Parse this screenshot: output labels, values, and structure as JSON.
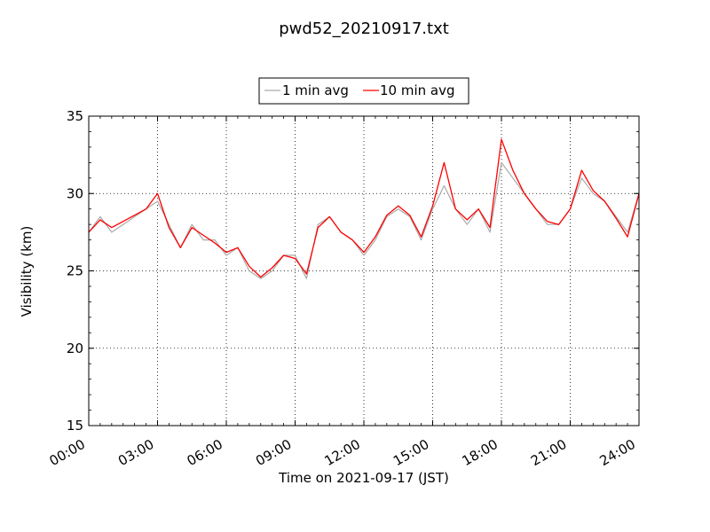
{
  "chart_data": {
    "type": "line",
    "title": "pwd52_20210917.txt",
    "xlabel": "Time on 2021-09-17 (JST)",
    "ylabel": "Visibility (km)",
    "xlim": [
      "00:00",
      "24:00"
    ],
    "ylim": [
      15,
      35
    ],
    "x_ticks": [
      "00:00",
      "03:00",
      "06:00",
      "09:00",
      "12:00",
      "15:00",
      "18:00",
      "21:00",
      "24:00"
    ],
    "y_ticks": [
      "15",
      "20",
      "25",
      "30",
      "35"
    ],
    "grid": true,
    "legend_position": "top-center",
    "series": [
      {
        "name": "1 min avg",
        "color": "#aaaaaa",
        "x": [
          "00:00",
          "00:30",
          "01:00",
          "01:30",
          "02:00",
          "02:30",
          "03:00",
          "03:30",
          "04:00",
          "04:30",
          "05:00",
          "05:30",
          "06:00",
          "06:30",
          "07:00",
          "07:30",
          "08:00",
          "08:30",
          "09:00",
          "09:30",
          "10:00",
          "10:30",
          "11:00",
          "11:30",
          "12:00",
          "12:30",
          "13:00",
          "13:30",
          "14:00",
          "14:30",
          "15:00",
          "15:30",
          "16:00",
          "16:30",
          "17:00",
          "17:30",
          "18:00",
          "18:30",
          "19:00",
          "19:30",
          "20:00",
          "20:30",
          "21:00",
          "21:30",
          "22:00",
          "22:30",
          "23:00",
          "23:30",
          "24:00"
        ],
        "values": [
          27.5,
          28.5,
          27.5,
          28,
          28.5,
          29,
          29.5,
          28,
          26.5,
          28,
          27,
          27,
          26,
          26.5,
          25,
          24.5,
          25,
          26,
          26,
          24.5,
          28,
          28.5,
          27.5,
          27,
          26,
          27,
          28.5,
          29,
          28.5,
          27,
          29,
          30.5,
          29,
          28,
          29,
          27.5,
          32,
          31,
          30,
          29,
          28,
          28,
          29,
          31,
          30,
          29.5,
          28.5,
          27.5,
          30
        ]
      },
      {
        "name": "10 min avg",
        "color": "#ff0000",
        "x": [
          "00:00",
          "00:30",
          "01:00",
          "01:30",
          "02:00",
          "02:30",
          "03:00",
          "03:30",
          "04:00",
          "04:30",
          "05:00",
          "05:30",
          "06:00",
          "06:30",
          "07:00",
          "07:30",
          "08:00",
          "08:30",
          "09:00",
          "09:30",
          "10:00",
          "10:30",
          "11:00",
          "11:30",
          "12:00",
          "12:30",
          "13:00",
          "13:30",
          "14:00",
          "14:30",
          "15:00",
          "15:30",
          "16:00",
          "16:30",
          "17:00",
          "17:30",
          "18:00",
          "18:30",
          "19:00",
          "19:30",
          "20:00",
          "20:30",
          "21:00",
          "21:30",
          "22:00",
          "22:30",
          "23:00",
          "23:30",
          "24:00"
        ],
        "values": [
          27.5,
          28.3,
          27.8,
          28.2,
          28.6,
          29,
          30,
          27.8,
          26.5,
          27.8,
          27.3,
          26.8,
          26.2,
          26.5,
          25.3,
          24.6,
          25.2,
          26,
          25.8,
          24.8,
          27.8,
          28.5,
          27.5,
          27,
          26.2,
          27.2,
          28.6,
          29.2,
          28.6,
          27.2,
          29.2,
          32,
          29,
          28.3,
          29,
          27.8,
          33.5,
          31.5,
          30,
          29,
          28.2,
          28,
          29,
          31.5,
          30.2,
          29.5,
          28.4,
          27.2,
          30
        ]
      }
    ]
  }
}
